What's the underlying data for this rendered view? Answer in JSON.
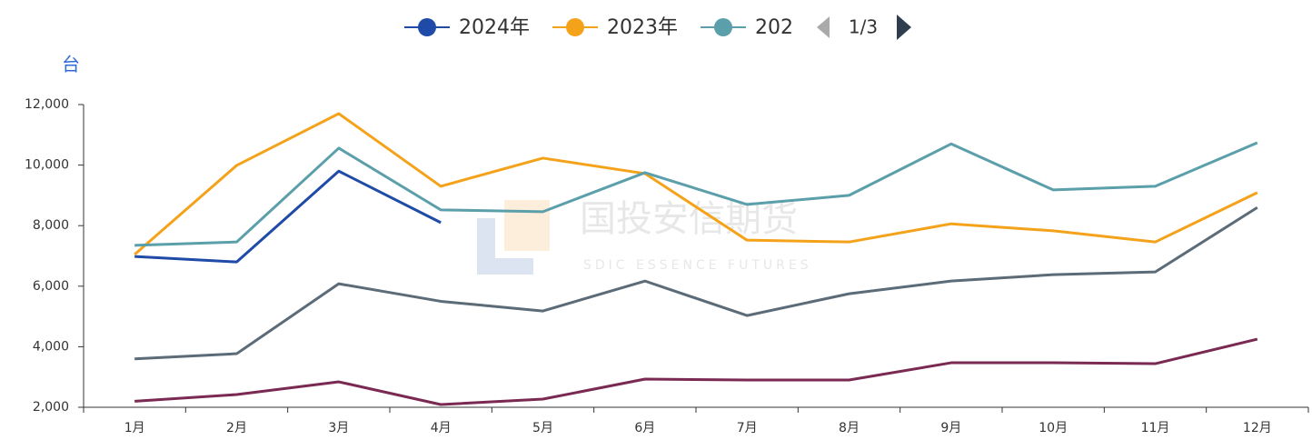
{
  "chart_data": {
    "type": "line",
    "y_label": "台",
    "legend_page": "1/3",
    "watermark": {
      "title": "国投安信期货",
      "subtitle": "SDIC ESSENCE FUTURES"
    },
    "categories": [
      "1月",
      "2月",
      "3月",
      "4月",
      "5月",
      "6月",
      "7月",
      "8月",
      "9月",
      "10月",
      "11月",
      "12月"
    ],
    "series": [
      {
        "name": "2024年",
        "color": "#1f4aa8",
        "values": [
          6980,
          6800,
          9800,
          8100,
          null,
          null,
          null,
          null,
          null,
          null,
          null,
          null
        ]
      },
      {
        "name": "2023年",
        "color": "#f5a21b",
        "values": [
          7050,
          9990,
          11700,
          9300,
          10230,
          9720,
          7520,
          7460,
          8060,
          7830,
          7460,
          9090
        ]
      },
      {
        "name": "202",
        "color": "#5b9faa",
        "values": [
          7350,
          7460,
          10560,
          8520,
          8460,
          9750,
          8700,
          9000,
          10700,
          9180,
          9300,
          10740
        ]
      },
      {
        "color": "#5c6b78",
        "values": [
          3600,
          3770,
          6080,
          5500,
          5180,
          6170,
          5030,
          5750,
          6170,
          6380,
          6470,
          8600
        ]
      },
      {
        "color": "#7a2a52",
        "values": [
          2200,
          2420,
          2840,
          2090,
          2270,
          2930,
          2900,
          2900,
          3470,
          3470,
          3440,
          4250
        ]
      }
    ],
    "ylim": [
      2000,
      12000
    ],
    "yticks": [
      {
        "value": 2000,
        "label": "2,000"
      },
      {
        "value": 4000,
        "label": "4,000"
      },
      {
        "value": 6000,
        "label": "6,000"
      },
      {
        "value": 8000,
        "label": "8,000"
      },
      {
        "value": 10000,
        "label": "10,000"
      },
      {
        "value": 12000,
        "label": "12,000"
      }
    ],
    "legend": "top",
    "grid": false
  }
}
